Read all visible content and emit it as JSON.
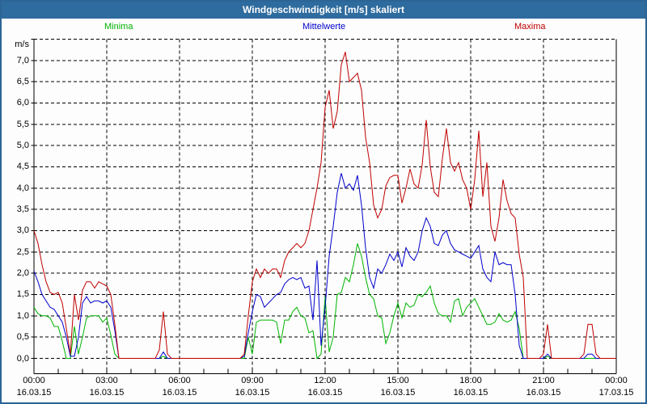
{
  "window": {
    "title": "Windgeschwindigkeit [m/s] skaliert"
  },
  "chart_data": {
    "type": "line",
    "title": "Windgeschwindigkeit [m/s] skaliert",
    "ylabel": "m/s",
    "ylim": [
      0,
      7.5
    ],
    "y_tick_step": 0.5,
    "grid": "dashed",
    "legend_position": "top",
    "x_unit": "time",
    "x_range_hours": [
      0,
      24
    ],
    "x_step_minutes": 10,
    "y_tick_labels": [
      "0,0",
      "0,5",
      "1,0",
      "1,5",
      "2,0",
      "2,5",
      "3,0",
      "3,5",
      "4,0",
      "4,5",
      "5,0",
      "5,5",
      "6,0",
      "6,5",
      "7,0"
    ],
    "x_tick_labels": [
      {
        "time": "00:00",
        "date": "16.03.15"
      },
      {
        "time": "03:00",
        "date": "16.03.15"
      },
      {
        "time": "06:00",
        "date": "16.03.15"
      },
      {
        "time": "09:00",
        "date": "16.03.15"
      },
      {
        "time": "12:00",
        "date": "16.03.15"
      },
      {
        "time": "15:00",
        "date": "16.03.15"
      },
      {
        "time": "18:00",
        "date": "16.03.15"
      },
      {
        "time": "21:00",
        "date": "16.03.15"
      },
      {
        "time": "00:00",
        "date": "17.03.15"
      }
    ],
    "series": [
      {
        "name": "Minima",
        "color": "#00b400",
        "values": [
          1.2,
          1.05,
          1.0,
          1.0,
          0.95,
          0.75,
          0.75,
          0.4,
          0,
          0,
          0.75,
          0.1,
          0.5,
          0.95,
          1.0,
          1.0,
          1.0,
          0.85,
          0.95,
          0.55,
          0.1,
          0,
          0,
          0,
          0,
          0,
          0,
          0,
          0,
          0,
          0,
          0,
          0.05,
          0,
          0,
          0,
          0,
          0,
          0,
          0,
          0,
          0,
          0,
          0,
          0,
          0,
          0,
          0,
          0,
          0,
          0,
          0,
          0,
          0.5,
          0.1,
          0.85,
          0.9,
          0.9,
          0.9,
          0.9,
          0.85,
          0.35,
          0.9,
          0.9,
          1.1,
          1.2,
          1.0,
          0.95,
          0.6,
          0.65,
          0,
          0.1,
          1.45,
          0.15,
          0.5,
          1.5,
          1.55,
          1.9,
          1.8,
          2.2,
          2.7,
          2.4,
          1.9,
          1.5,
          1.4,
          1.0,
          0.95,
          0.35,
          0.6,
          1.0,
          1.3,
          0.95,
          1.3,
          1.2,
          1.25,
          1.5,
          1.45,
          1.55,
          1.7,
          1.3,
          1.05,
          1.0,
          1.0,
          0.85,
          1.35,
          1.4,
          1.0,
          1.2,
          1.3,
          1.4,
          1.2,
          1.0,
          0.8,
          0.8,
          0.85,
          1.05,
          0.9,
          0.85,
          0.9,
          1.1,
          0.7,
          0,
          0,
          0,
          0,
          0,
          0,
          0.05,
          0,
          0,
          0,
          0,
          0,
          0,
          0,
          0,
          0,
          0,
          0,
          0,
          0,
          0,
          0,
          0,
          0
        ]
      },
      {
        "name": "Mittelwerte",
        "color": "#0000cc",
        "values": [
          2.05,
          1.8,
          1.5,
          1.35,
          1.2,
          1.15,
          1.0,
          0.85,
          0.5,
          0.05,
          0.05,
          0.5,
          1.3,
          1.45,
          1.3,
          1.35,
          1.35,
          1.3,
          1.35,
          1.2,
          0.65,
          0,
          0,
          0,
          0,
          0,
          0,
          0,
          0,
          0,
          0,
          0,
          0.15,
          0,
          0,
          0,
          0,
          0,
          0,
          0,
          0,
          0,
          0,
          0,
          0,
          0,
          0,
          0,
          0,
          0,
          0,
          0,
          0.05,
          0.6,
          1.1,
          1.5,
          1.45,
          1.2,
          1.3,
          1.4,
          1.5,
          1.55,
          1.75,
          1.85,
          1.9,
          1.85,
          1.9,
          1.65,
          1.7,
          0.9,
          2.3,
          0.3,
          1.2,
          2.4,
          3.1,
          3.9,
          4.35,
          4.0,
          4.1,
          3.95,
          4.3,
          3.6,
          2.6,
          1.9,
          1.65,
          2.1,
          2.0,
          2.2,
          2.45,
          2.3,
          2.5,
          2.15,
          2.6,
          2.4,
          2.3,
          2.5,
          3.0,
          3.3,
          3.1,
          2.7,
          2.65,
          2.9,
          3.0,
          2.7,
          2.55,
          2.5,
          2.45,
          2.4,
          2.35,
          2.5,
          2.65,
          2.1,
          1.9,
          1.8,
          2.5,
          2.2,
          2.25,
          2.2,
          2.2,
          1.5,
          0.3,
          0,
          0,
          0,
          0,
          0,
          0,
          0.1,
          0,
          0,
          0,
          0,
          0,
          0,
          0,
          0,
          0,
          0.1,
          0.1,
          0,
          0,
          0,
          0,
          0,
          0
        ]
      },
      {
        "name": "Maxima",
        "color": "#c00000",
        "values": [
          3.0,
          2.7,
          2.2,
          1.8,
          1.55,
          1.5,
          1.55,
          1.3,
          0.7,
          0.1,
          1.5,
          0.9,
          1.6,
          1.8,
          1.8,
          1.65,
          1.8,
          1.75,
          1.7,
          1.5,
          0.8,
          0,
          0,
          0,
          0,
          0,
          0,
          0,
          0,
          0,
          0,
          0.2,
          1.1,
          0.1,
          0,
          0,
          0,
          0,
          0,
          0,
          0,
          0,
          0,
          0,
          0,
          0,
          0,
          0,
          0,
          0,
          0,
          0,
          0.1,
          1.0,
          1.8,
          2.1,
          1.9,
          2.1,
          2.0,
          2.1,
          2.1,
          1.9,
          2.3,
          2.5,
          2.6,
          2.7,
          2.6,
          2.7,
          3.0,
          3.5,
          4.0,
          4.6,
          5.9,
          6.3,
          5.4,
          5.8,
          6.9,
          7.2,
          6.5,
          6.6,
          6.7,
          6.3,
          5.2,
          4.6,
          3.6,
          3.3,
          3.5,
          4.05,
          4.25,
          4.3,
          4.3,
          3.65,
          4.0,
          4.45,
          4.1,
          4.0,
          4.55,
          5.6,
          4.5,
          3.9,
          3.8,
          4.7,
          5.4,
          4.6,
          4.4,
          4.6,
          4.2,
          4.0,
          3.5,
          4.2,
          5.35,
          3.8,
          4.6,
          3.1,
          2.75,
          3.3,
          4.2,
          3.7,
          3.4,
          3.3,
          2.45,
          1.9,
          0,
          0,
          0,
          0,
          0.1,
          0.8,
          0,
          0,
          0,
          0,
          0,
          0,
          0,
          0,
          0.1,
          0.8,
          0.8,
          0.1,
          0,
          0,
          0,
          0,
          0
        ]
      }
    ]
  }
}
